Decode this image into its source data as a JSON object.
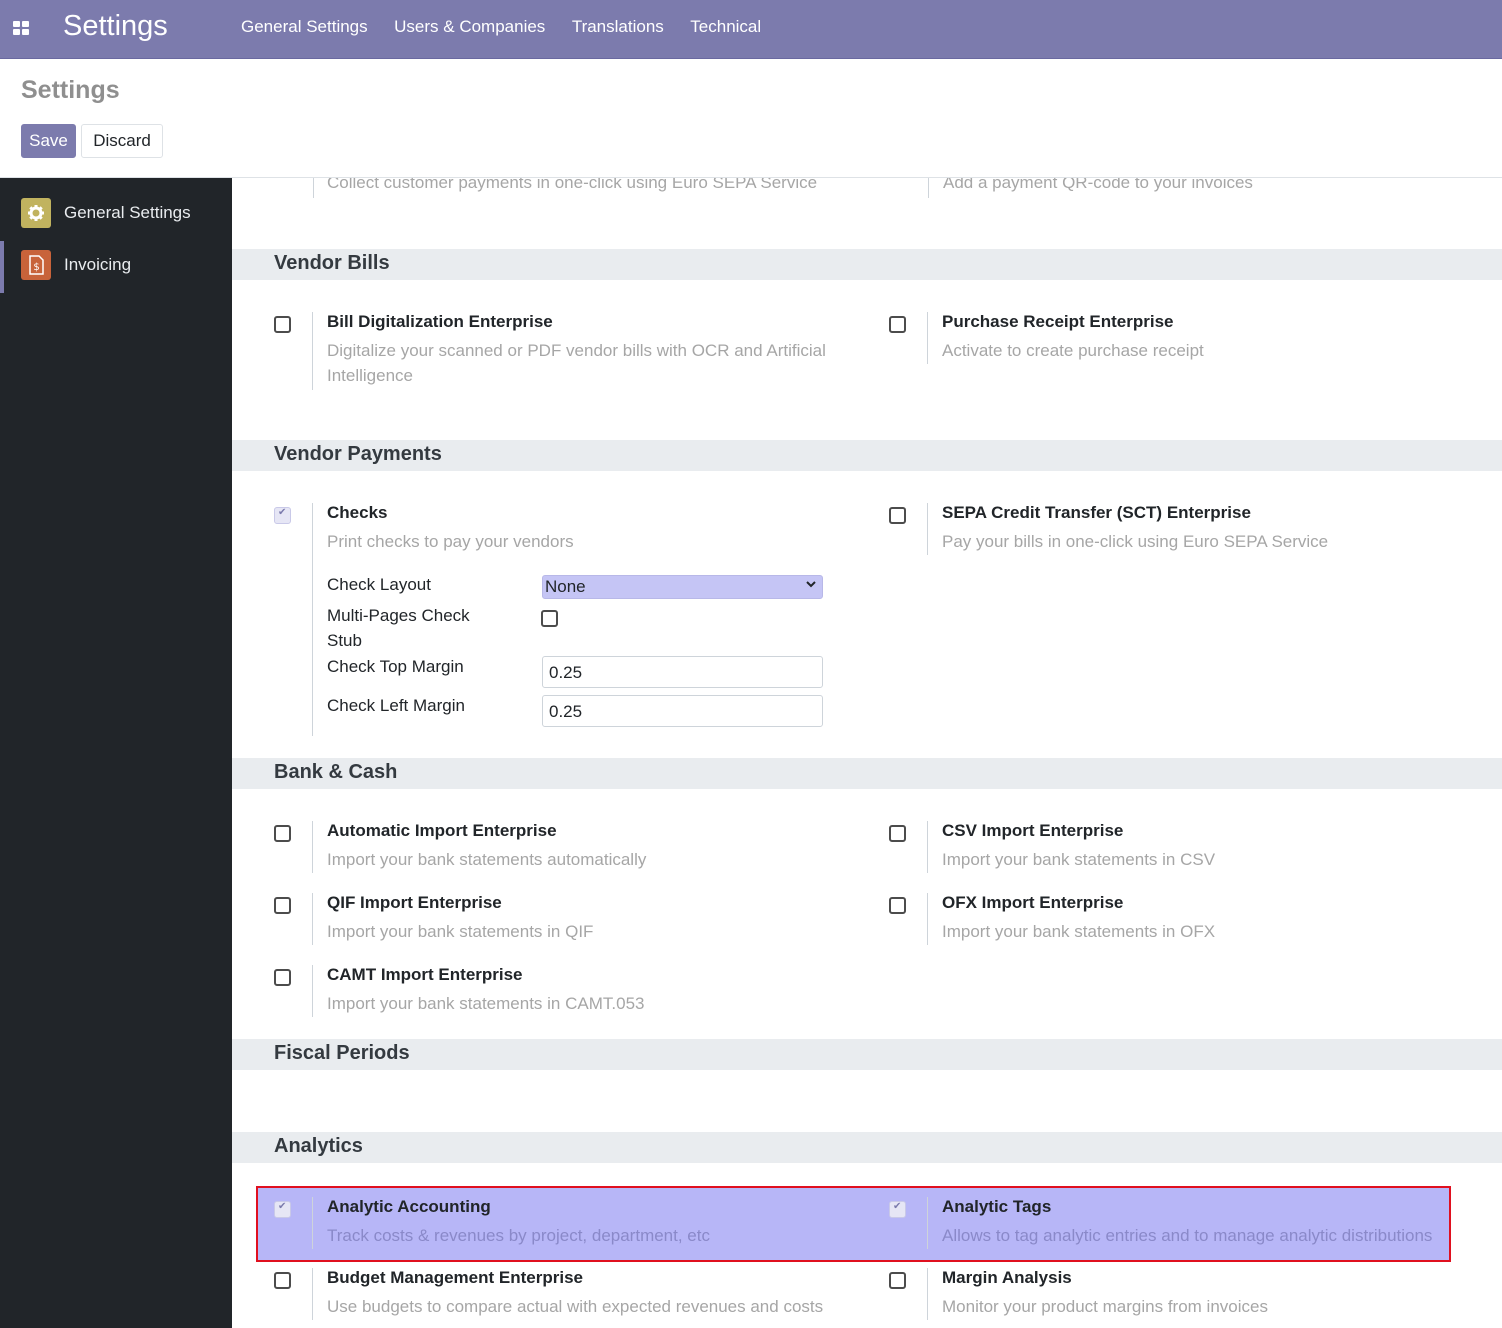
{
  "navbar": {
    "app_title": "Settings",
    "menu": [
      "General Settings",
      "Users & Companies",
      "Translations",
      "Technical"
    ]
  },
  "control_panel": {
    "title": "Settings",
    "save_label": "Save",
    "discard_label": "Discard"
  },
  "sidebar": {
    "items": [
      {
        "label": "General Settings",
        "icon": "gear-icon",
        "color": "#c1b35f"
      },
      {
        "label": "Invoicing",
        "icon": "invoice-icon",
        "color": "#c8633a"
      }
    ]
  },
  "top_cut": {
    "left_desc": "Collect customer payments in one-click using Euro SEPA Service",
    "right_desc": "Add a payment QR-code to your invoices"
  },
  "sections": {
    "vendor_bills": {
      "title": "Vendor Bills",
      "settings": [
        {
          "title": "Bill Digitalization Enterprise",
          "desc": "Digitalize your scanned or PDF vendor bills with OCR and Artificial Intelligence",
          "checked": false
        },
        {
          "title": "Purchase Receipt Enterprise",
          "desc": "Activate to create purchase receipt",
          "checked": false
        }
      ]
    },
    "vendor_payments": {
      "title": "Vendor Payments",
      "settings": [
        {
          "title": "Checks",
          "desc": "Print checks to pay your vendors",
          "checked": true
        },
        {
          "title": "SEPA Credit Transfer (SCT) Enterprise",
          "desc": "Pay your bills in one-click using Euro SEPA Service",
          "checked": false
        }
      ],
      "check_fields": {
        "layout_label": "Check Layout",
        "layout_value": "None",
        "multi_label": "Multi-Pages Check Stub",
        "top_margin_label": "Check Top Margin",
        "top_margin_value": "0.25",
        "left_margin_label": "Check Left Margin",
        "left_margin_value": "0.25"
      }
    },
    "bank_cash": {
      "title": "Bank & Cash",
      "settings": [
        {
          "title": "Automatic Import Enterprise",
          "desc": "Import your bank statements automatically",
          "checked": false
        },
        {
          "title": "CSV Import Enterprise",
          "desc": "Import your bank statements in CSV",
          "checked": false
        },
        {
          "title": "QIF Import Enterprise",
          "desc": "Import your bank statements in QIF",
          "checked": false
        },
        {
          "title": "OFX Import Enterprise",
          "desc": "Import your bank statements in OFX",
          "checked": false
        },
        {
          "title": "CAMT Import Enterprise",
          "desc": "Import your bank statements in CAMT.053",
          "checked": false
        }
      ]
    },
    "fiscal_periods": {
      "title": "Fiscal Periods"
    },
    "analytics": {
      "title": "Analytics",
      "settings": [
        {
          "title": "Analytic Accounting",
          "desc": "Track costs & revenues by project, department, etc",
          "checked": true
        },
        {
          "title": "Analytic Tags",
          "desc": "Allows to tag analytic entries and to manage analytic distributions",
          "checked": true
        },
        {
          "title": "Budget Management Enterprise",
          "desc": "Use budgets to compare actual with expected revenues and costs",
          "checked": false
        },
        {
          "title": "Margin Analysis",
          "desc": "Monitor your product margins from invoices",
          "checked": false
        }
      ]
    }
  }
}
